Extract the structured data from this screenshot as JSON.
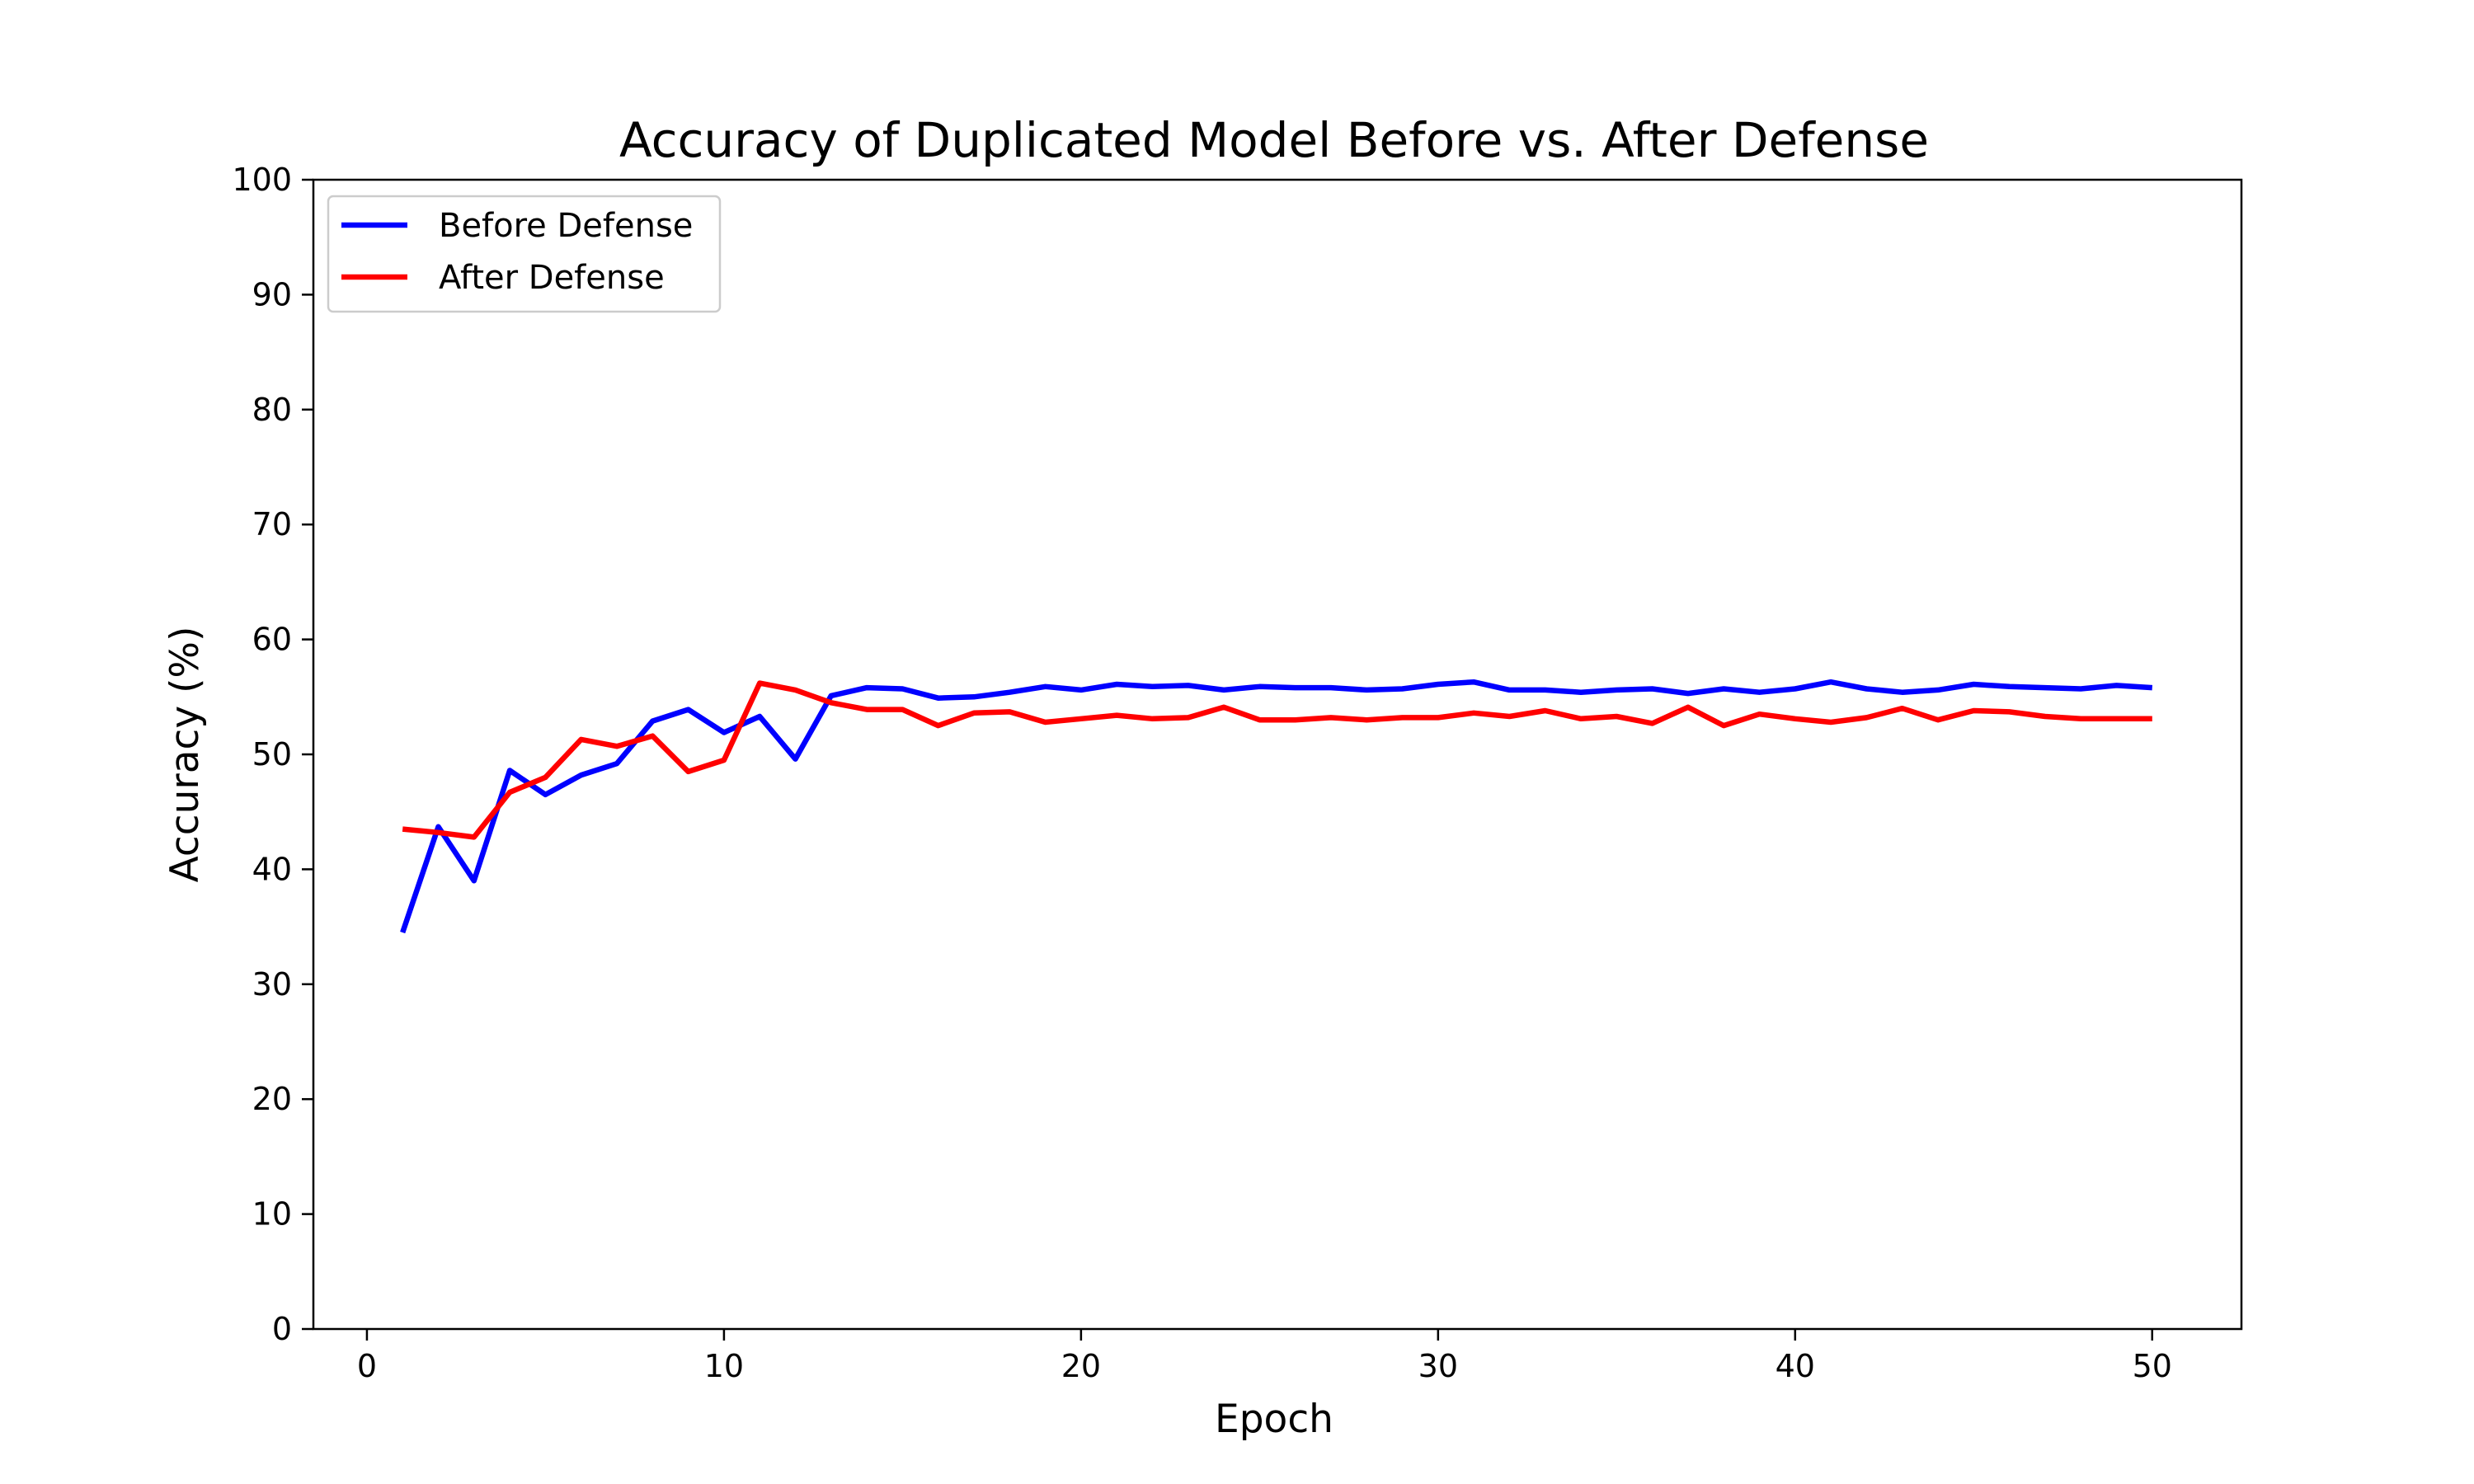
{
  "chart_data": {
    "type": "line",
    "title": "Accuracy of Duplicated Model Before vs. After Defense",
    "xlabel": "Epoch",
    "ylabel": "Accuracy (%)",
    "xlim": [
      -1.5,
      52.5
    ],
    "ylim": [
      0,
      100
    ],
    "xticks": [
      0,
      10,
      20,
      30,
      40,
      50
    ],
    "yticks": [
      0,
      10,
      20,
      30,
      40,
      50,
      60,
      70,
      80,
      90,
      100
    ],
    "grid": false,
    "legend_position": "upper left",
    "x": [
      1,
      2,
      3,
      4,
      5,
      6,
      7,
      8,
      9,
      10,
      11,
      12,
      13,
      14,
      15,
      16,
      17,
      18,
      19,
      20,
      21,
      22,
      23,
      24,
      25,
      26,
      27,
      28,
      29,
      30,
      31,
      32,
      33,
      34,
      35,
      36,
      37,
      38,
      39,
      40,
      41,
      42,
      43,
      44,
      45,
      46,
      47,
      48,
      49,
      50
    ],
    "series": [
      {
        "name": "Before Defense",
        "color": "#0000ff",
        "values": [
          34.5,
          43.7,
          39.0,
          48.6,
          46.5,
          48.2,
          49.2,
          52.9,
          53.9,
          51.9,
          53.3,
          49.6,
          55.1,
          55.8,
          55.7,
          54.9,
          55.0,
          55.4,
          55.9,
          55.6,
          56.1,
          55.9,
          56.0,
          55.6,
          55.9,
          55.8,
          55.8,
          55.6,
          55.7,
          56.1,
          56.3,
          55.6,
          55.6,
          55.4,
          55.6,
          55.7,
          55.3,
          55.7,
          55.4,
          55.7,
          56.3,
          55.7,
          55.4,
          55.6,
          56.1,
          55.9,
          55.8,
          55.7,
          56.0,
          55.8
        ]
      },
      {
        "name": "After Defense",
        "color": "#ff0000",
        "values": [
          43.5,
          43.2,
          42.8,
          46.7,
          48.0,
          51.3,
          50.7,
          51.6,
          48.5,
          49.5,
          56.2,
          55.6,
          54.5,
          53.9,
          53.9,
          52.5,
          53.6,
          53.7,
          52.8,
          53.1,
          53.4,
          53.1,
          53.2,
          54.1,
          53.0,
          53.0,
          53.2,
          53.0,
          53.2,
          53.2,
          53.6,
          53.3,
          53.8,
          53.1,
          53.3,
          52.7,
          54.1,
          52.5,
          53.5,
          53.1,
          52.8,
          53.2,
          54.0,
          53.0,
          53.8,
          53.7,
          53.3,
          53.1,
          53.1,
          53.1
        ]
      }
    ]
  }
}
